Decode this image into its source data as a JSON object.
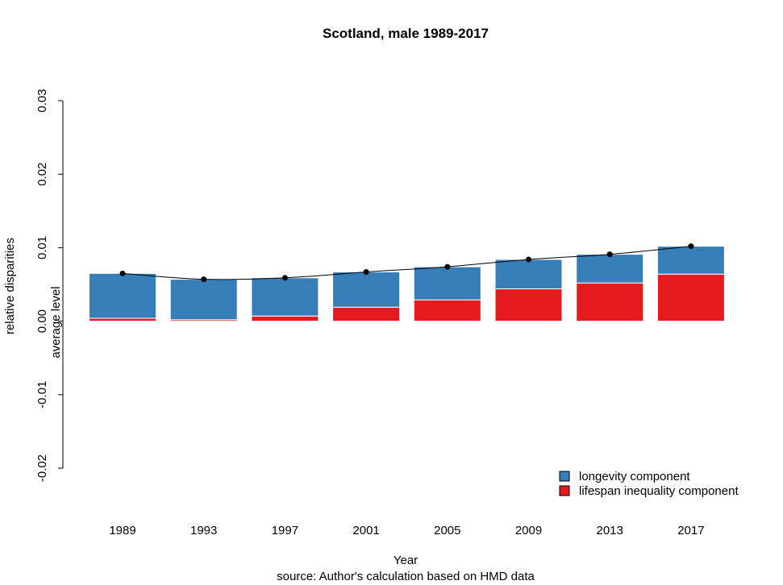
{
  "chart_data": {
    "type": "bar",
    "stacked": true,
    "title": "Scotland, male 1989-2017",
    "xlabel": "Year",
    "ylabel": "relative disparities",
    "secondary_ylabel": "average level",
    "caption": "source: Author's calculation based on HMD data",
    "categories": [
      "1989",
      "1993",
      "1997",
      "2001",
      "2005",
      "2009",
      "2013",
      "2017"
    ],
    "ylim": [
      -0.02,
      0.03
    ],
    "yticks": [
      -0.02,
      -0.01,
      0.0,
      0.01,
      0.02,
      0.03
    ],
    "ytick_labels": [
      "-0.02",
      "-0.01",
      "0.00",
      "0.01",
      "0.02",
      "0.03"
    ],
    "series": [
      {
        "name": "lifespan inequality component",
        "color": "#E41A1C",
        "values": [
          0.0004,
          0.0002,
          0.0007,
          0.0019,
          0.0029,
          0.0044,
          0.0052,
          0.0064
        ]
      },
      {
        "name": "longevity component",
        "color": "#377EB8",
        "values": [
          0.0061,
          0.0055,
          0.0052,
          0.0048,
          0.0045,
          0.004,
          0.0039,
          0.0038
        ]
      }
    ],
    "line": {
      "name": "average level",
      "color": "#000000",
      "values": [
        0.0065,
        0.0057,
        0.0059,
        0.0067,
        0.0074,
        0.0084,
        0.0091,
        0.0102
      ]
    },
    "legend": {
      "position": "bottom-right",
      "items": [
        {
          "label": "longevity component",
          "color": "#377EB8"
        },
        {
          "label": "lifespan inequality component",
          "color": "#E41A1C"
        }
      ]
    },
    "grid": false
  }
}
